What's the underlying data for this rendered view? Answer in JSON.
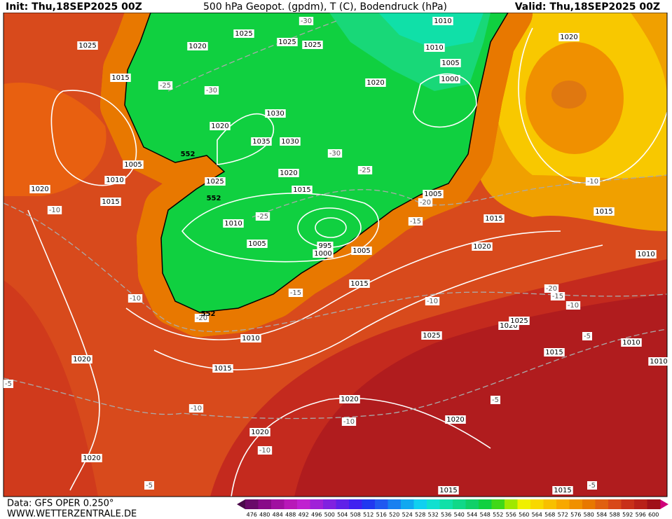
{
  "header": {
    "init": "Init: Thu,18SEP2025 00Z",
    "title": "500 hPa Geopot. (gpdm), T (C), Bodendruck (hPa)",
    "valid": "Valid: Thu,18SEP2025 00Z"
  },
  "map": {
    "pressure_labels": [
      "1025",
      "1025",
      "1025",
      "1025",
      "1020",
      "1015",
      "1020",
      "1010",
      "1010",
      "1005",
      "1000",
      "1030",
      "1020",
      "1035",
      "1030",
      "1005",
      "1010",
      "1020",
      "1025",
      "1015",
      "1020",
      "1015",
      "1010",
      "1005",
      "995",
      "1000",
      "1005",
      "1005",
      "1015",
      "1020",
      "1015",
      "1020",
      "1015",
      "1010",
      "1010",
      "1015",
      "1020",
      "1025",
      "1020",
      "1025",
      "1015",
      "1010",
      "1010",
      "1020",
      "1020",
      "1020",
      "1020",
      "1015",
      "1015"
    ],
    "temperature_labels": [
      "-30",
      "-25",
      "-30",
      "-30",
      "-25",
      "-25",
      "-20",
      "-15",
      "-15",
      "-10",
      "-20",
      "-10",
      "-10",
      "-20",
      "-15",
      "-10",
      "-10",
      "-5",
      "-5",
      "-10",
      "-10",
      "-5",
      "-10",
      "-5",
      "-5"
    ],
    "geopotential_labels": [
      "552",
      "552",
      "552"
    ]
  },
  "colorbar": {
    "levels": [
      476,
      480,
      484,
      488,
      492,
      496,
      500,
      504,
      508,
      512,
      516,
      520,
      524,
      528,
      532,
      536,
      540,
      544,
      548,
      552,
      556,
      560,
      564,
      568,
      572,
      576,
      580,
      584,
      588,
      592,
      596,
      600
    ],
    "colors": [
      "#6a0a6a",
      "#880a88",
      "#a010a0",
      "#b818b8",
      "#c020d0",
      "#a020d8",
      "#8020e0",
      "#6020e8",
      "#4020f0",
      "#2038f0",
      "#2058f0",
      "#1880f0",
      "#10a8f0",
      "#10d0f0",
      "#10e0d0",
      "#10e0a8",
      "#10d888",
      "#10d068",
      "#10d040",
      "#40d818",
      "#a0e800",
      "#f0f000",
      "#f8d800",
      "#f8c000",
      "#f8a800",
      "#f09000",
      "#e87800",
      "#e06010",
      "#d84818",
      "#c83018",
      "#b82018",
      "#a01018"
    ]
  },
  "footer": {
    "data": "Data: GFS OPER 0.250°",
    "site": "WWW.WETTERZENTRALE.DE"
  }
}
